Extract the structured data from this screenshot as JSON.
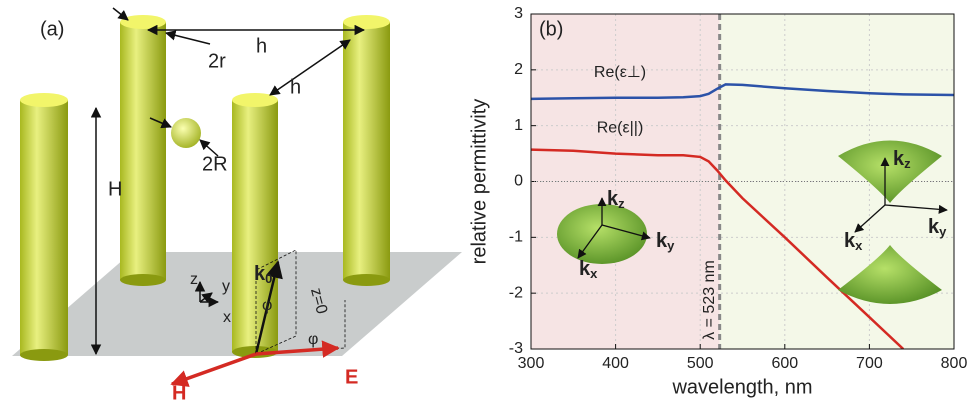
{
  "diagram": {
    "panel_label": "(a)",
    "labels": {
      "h_top": "h",
      "h_side": "h",
      "r": "2r",
      "R": "2R",
      "H_height": "H",
      "k0": {
        "base": "k",
        "sub": "0"
      },
      "phi_1": "φ",
      "phi_2": "φ",
      "plane": "z=0",
      "axis_x": "x",
      "axis_y": "y",
      "axis_z": "z",
      "H_field": "H",
      "E_field": "E"
    }
  },
  "chart_data": {
    "type": "line",
    "panel_label": "(b)",
    "x_label": "wavelength, nm",
    "y_label": "relative permittivity",
    "x": [
      300,
      350,
      400,
      450,
      480,
      500,
      510,
      520,
      530,
      550,
      600,
      650,
      700,
      740,
      800
    ],
    "series": [
      {
        "name": "Re(ε⊥)",
        "color": "#2b52a8",
        "values": [
          1.48,
          1.49,
          1.5,
          1.5,
          1.51,
          1.53,
          1.57,
          1.66,
          1.74,
          1.73,
          1.67,
          1.62,
          1.58,
          1.56,
          1.55
        ]
      },
      {
        "name": "Re(ε||)",
        "color": "#d42a23",
        "values": [
          0.57,
          0.55,
          0.5,
          0.47,
          0.47,
          0.44,
          0.36,
          0.2,
          0.02,
          -0.3,
          -1.0,
          -1.72,
          -2.43,
          -3.0,
          null
        ]
      }
    ],
    "xlim": [
      300,
      800
    ],
    "xticks": [
      300,
      400,
      500,
      600,
      700,
      800
    ],
    "ylim": [
      -3,
      3
    ],
    "yticks": [
      -3,
      -2,
      -1,
      0,
      1,
      2,
      3
    ],
    "annotation": {
      "x": 523,
      "label": "λ = 523 nm"
    },
    "insets": [
      {
        "labels": [
          {
            "base": "k",
            "sub": "z"
          },
          {
            "base": "k",
            "sub": "y"
          },
          {
            "base": "k",
            "sub": "x"
          }
        ]
      },
      {
        "labels": [
          {
            "base": "k",
            "sub": "z"
          },
          {
            "base": "k",
            "sub": "y"
          },
          {
            "base": "k",
            "sub": "x"
          }
        ]
      }
    ]
  }
}
